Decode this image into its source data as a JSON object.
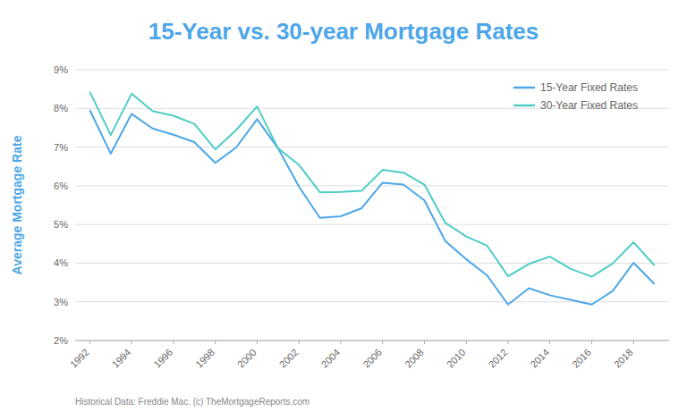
{
  "chart_data": {
    "type": "line",
    "title": "15-Year vs. 30-year Mortgage Rates",
    "y_label": "Average Mortgage Rate",
    "footnote": "Historical Data: Freddie Mac.  (c) TheMortgageReports.com",
    "x": [
      1992,
      1993,
      1994,
      1995,
      1996,
      1997,
      1998,
      1999,
      2000,
      2001,
      2002,
      2003,
      2004,
      2005,
      2006,
      2007,
      2008,
      2009,
      2010,
      2011,
      2012,
      2013,
      2014,
      2015,
      2016,
      2017,
      2018,
      2019
    ],
    "series": [
      {
        "name": "15-Year Fixed Rates",
        "color": "#4da6e8",
        "values": [
          7.96,
          6.83,
          7.86,
          7.48,
          7.32,
          7.13,
          6.59,
          6.99,
          7.72,
          6.97,
          5.98,
          5.17,
          5.21,
          5.42,
          6.08,
          6.03,
          5.62,
          4.57,
          4.1,
          3.68,
          2.93,
          3.35,
          3.17,
          3.05,
          2.93,
          3.28,
          4.01,
          3.46
        ]
      },
      {
        "name": "30-Year Fixed Rates",
        "color": "#4ecdc4",
        "values": [
          8.43,
          7.31,
          8.38,
          7.93,
          7.81,
          7.6,
          6.94,
          7.44,
          8.05,
          6.97,
          6.54,
          5.83,
          5.84,
          5.87,
          6.41,
          6.34,
          6.03,
          5.04,
          4.69,
          4.45,
          3.66,
          3.98,
          4.17,
          3.85,
          3.65,
          3.99,
          4.54,
          3.94
        ]
      }
    ],
    "xlim": [
      1991.3,
      2019.7
    ],
    "xticks": [
      1992,
      1994,
      1996,
      1998,
      2000,
      2002,
      2004,
      2006,
      2008,
      2010,
      2012,
      2014,
      2016,
      2018
    ],
    "ylim": [
      2,
      9
    ],
    "yticks": [
      {
        "value": 2,
        "label": "2%"
      },
      {
        "value": 3,
        "label": "3%"
      },
      {
        "value": 4,
        "label": "4%"
      },
      {
        "value": 5,
        "label": "5%"
      },
      {
        "value": 6,
        "label": "6%"
      },
      {
        "value": 7,
        "label": "7%"
      },
      {
        "value": 8,
        "label": "8%"
      },
      {
        "value": 9,
        "label": "9%"
      }
    ],
    "grid": true,
    "legend": "upper right"
  }
}
